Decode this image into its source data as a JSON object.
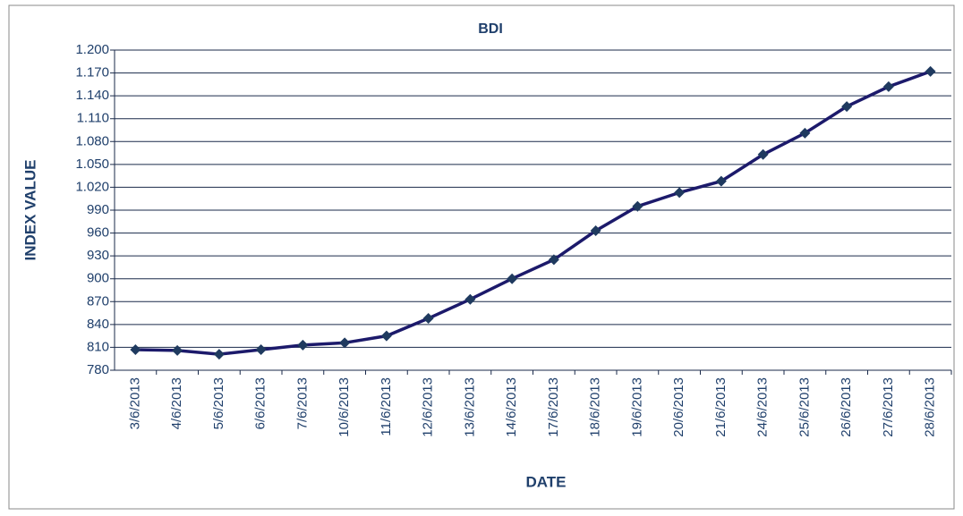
{
  "chart_data": {
    "type": "line",
    "title": "BDI",
    "x_label": "DATE",
    "y_label": "INDEX VALUE",
    "categories": [
      "3/6/2013",
      "4/6/2013",
      "5/6/2013",
      "6/6/2013",
      "7/6/2013",
      "10/6/2013",
      "11/6/2013",
      "12/6/2013",
      "13/6/2013",
      "14/6/2013",
      "17/6/2013",
      "18/6/2013",
      "19/6/2013",
      "20/6/2013",
      "21/6/2013",
      "24/6/2013",
      "25/6/2013",
      "26/6/2013",
      "27/6/2013",
      "28/6/2013"
    ],
    "series": [
      {
        "name": "BDI",
        "color": "#1c1a6b",
        "values": [
          807,
          806,
          801,
          807,
          813,
          816,
          825,
          848,
          873,
          900,
          925,
          963,
          995,
          1013,
          1028,
          1063,
          1091,
          1126,
          1152,
          1172
        ]
      }
    ],
    "ylim": [
      780,
      1200
    ],
    "yticks": [
      780,
      810,
      840,
      870,
      900,
      930,
      960,
      990,
      {
        "value": 1020,
        "label": "1.020"
      },
      {
        "value": 1050,
        "label": "1.050"
      },
      {
        "value": 1080,
        "label": "1.080"
      },
      {
        "value": 1110,
        "label": "1.110"
      },
      {
        "value": 1140,
        "label": "1.140"
      },
      {
        "value": 1170,
        "label": "1.170"
      },
      {
        "value": 1200,
        "label": "1.200"
      }
    ],
    "grid": true
  }
}
